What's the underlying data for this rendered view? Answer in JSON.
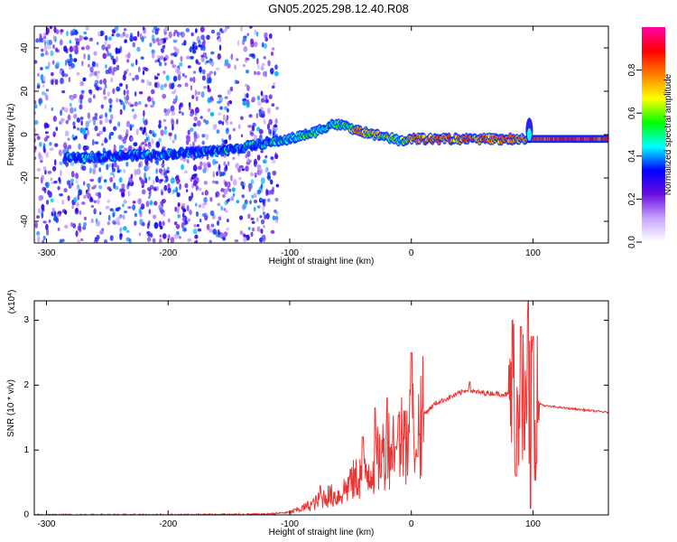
{
  "title": "GN05.2025.298.12.40.R08",
  "chart_data": [
    {
      "type": "heatmap",
      "xlabel": "Height of straight line (km)",
      "ylabel": "Frequency (Hz)",
      "xlim": [
        -310,
        162
      ],
      "ylim": [
        -50,
        50
      ],
      "xticks": [
        -300,
        -200,
        -100,
        0,
        100
      ],
      "yticks": [
        -40,
        -20,
        0,
        20,
        40
      ],
      "colorbar": {
        "label": "Normalized spectral amplitude",
        "range": [
          0,
          1
        ],
        "ticks": [
          "0.0",
          "0.2",
          "0.4",
          "0.6",
          "0.8"
        ],
        "colors": [
          "#ffffff",
          "#c7a6ff",
          "#6a0dde",
          "#0000ff",
          "#00ffff",
          "#00ff00",
          "#ffff00",
          "#ff8000",
          "#ff0000",
          "#ff00aa"
        ]
      },
      "ridge": {
        "x": [
          -285,
          -250,
          -200,
          -150,
          -120,
          -100,
          -80,
          -65,
          -55,
          -45,
          -30,
          -20,
          -10,
          0,
          20,
          40,
          60,
          80,
          95,
          100,
          120,
          162
        ],
        "y": [
          -11,
          -10,
          -9,
          -7,
          -4,
          -2,
          1,
          5,
          4,
          2,
          0,
          -1,
          -3,
          -2,
          -2,
          -2,
          -2,
          -2,
          -2,
          -2,
          -2,
          -2
        ],
        "amplitude": [
          0.45,
          0.45,
          0.45,
          0.5,
          0.5,
          0.55,
          0.6,
          0.55,
          0.65,
          0.8,
          0.75,
          0.7,
          0.6,
          0.85,
          0.85,
          0.85,
          0.85,
          0.85,
          0.8,
          0.9,
          0.95,
          0.95
        ]
      },
      "noise_x_range": [
        -310,
        -110
      ]
    },
    {
      "type": "line",
      "xlabel": "Height of straight line (km)",
      "ylabel": "SNR (10 * v/v)",
      "scale_label": "(x10",
      "scale_exp": "4",
      "xlim": [
        -310,
        162
      ],
      "ylim": [
        0,
        3.3
      ],
      "xticks": [
        -300,
        -200,
        -100,
        0,
        100
      ],
      "yticks": [
        0,
        1,
        2,
        3
      ],
      "color": "#ee3333",
      "series": [
        {
          "x": [
            -310,
            -200,
            -120,
            -100,
            -90,
            -80,
            -70,
            -60,
            -50,
            -40,
            -30,
            -20,
            -10,
            0,
            10,
            20,
            30,
            40,
            48,
            50,
            60,
            70,
            80,
            85,
            90,
            95,
            100,
            105,
            110,
            130,
            162
          ],
          "y": [
            0.0,
            0.0,
            0.01,
            0.04,
            0.1,
            0.18,
            0.3,
            0.3,
            0.5,
            0.65,
            0.8,
            1.05,
            1.2,
            1.35,
            1.55,
            1.72,
            1.8,
            1.88,
            1.95,
            1.9,
            1.88,
            1.87,
            1.85,
            1.85,
            1.83,
            1.8,
            1.75,
            1.72,
            1.68,
            1.64,
            1.58
          ]
        }
      ],
      "spikes": {
        "x": [
          -75,
          -50,
          -40,
          -30,
          -20,
          -13,
          -5,
          0,
          5,
          48,
          83,
          86,
          90,
          93,
          96,
          98,
          100,
          103
        ],
        "y": [
          0.45,
          0.7,
          1.2,
          1.65,
          1.8,
          1.05,
          1.6,
          2.5,
          0.9,
          2.05,
          3.0,
          0.6,
          2.9,
          1.0,
          3.3,
          0.1,
          2.75,
          0.8
        ]
      }
    }
  ]
}
